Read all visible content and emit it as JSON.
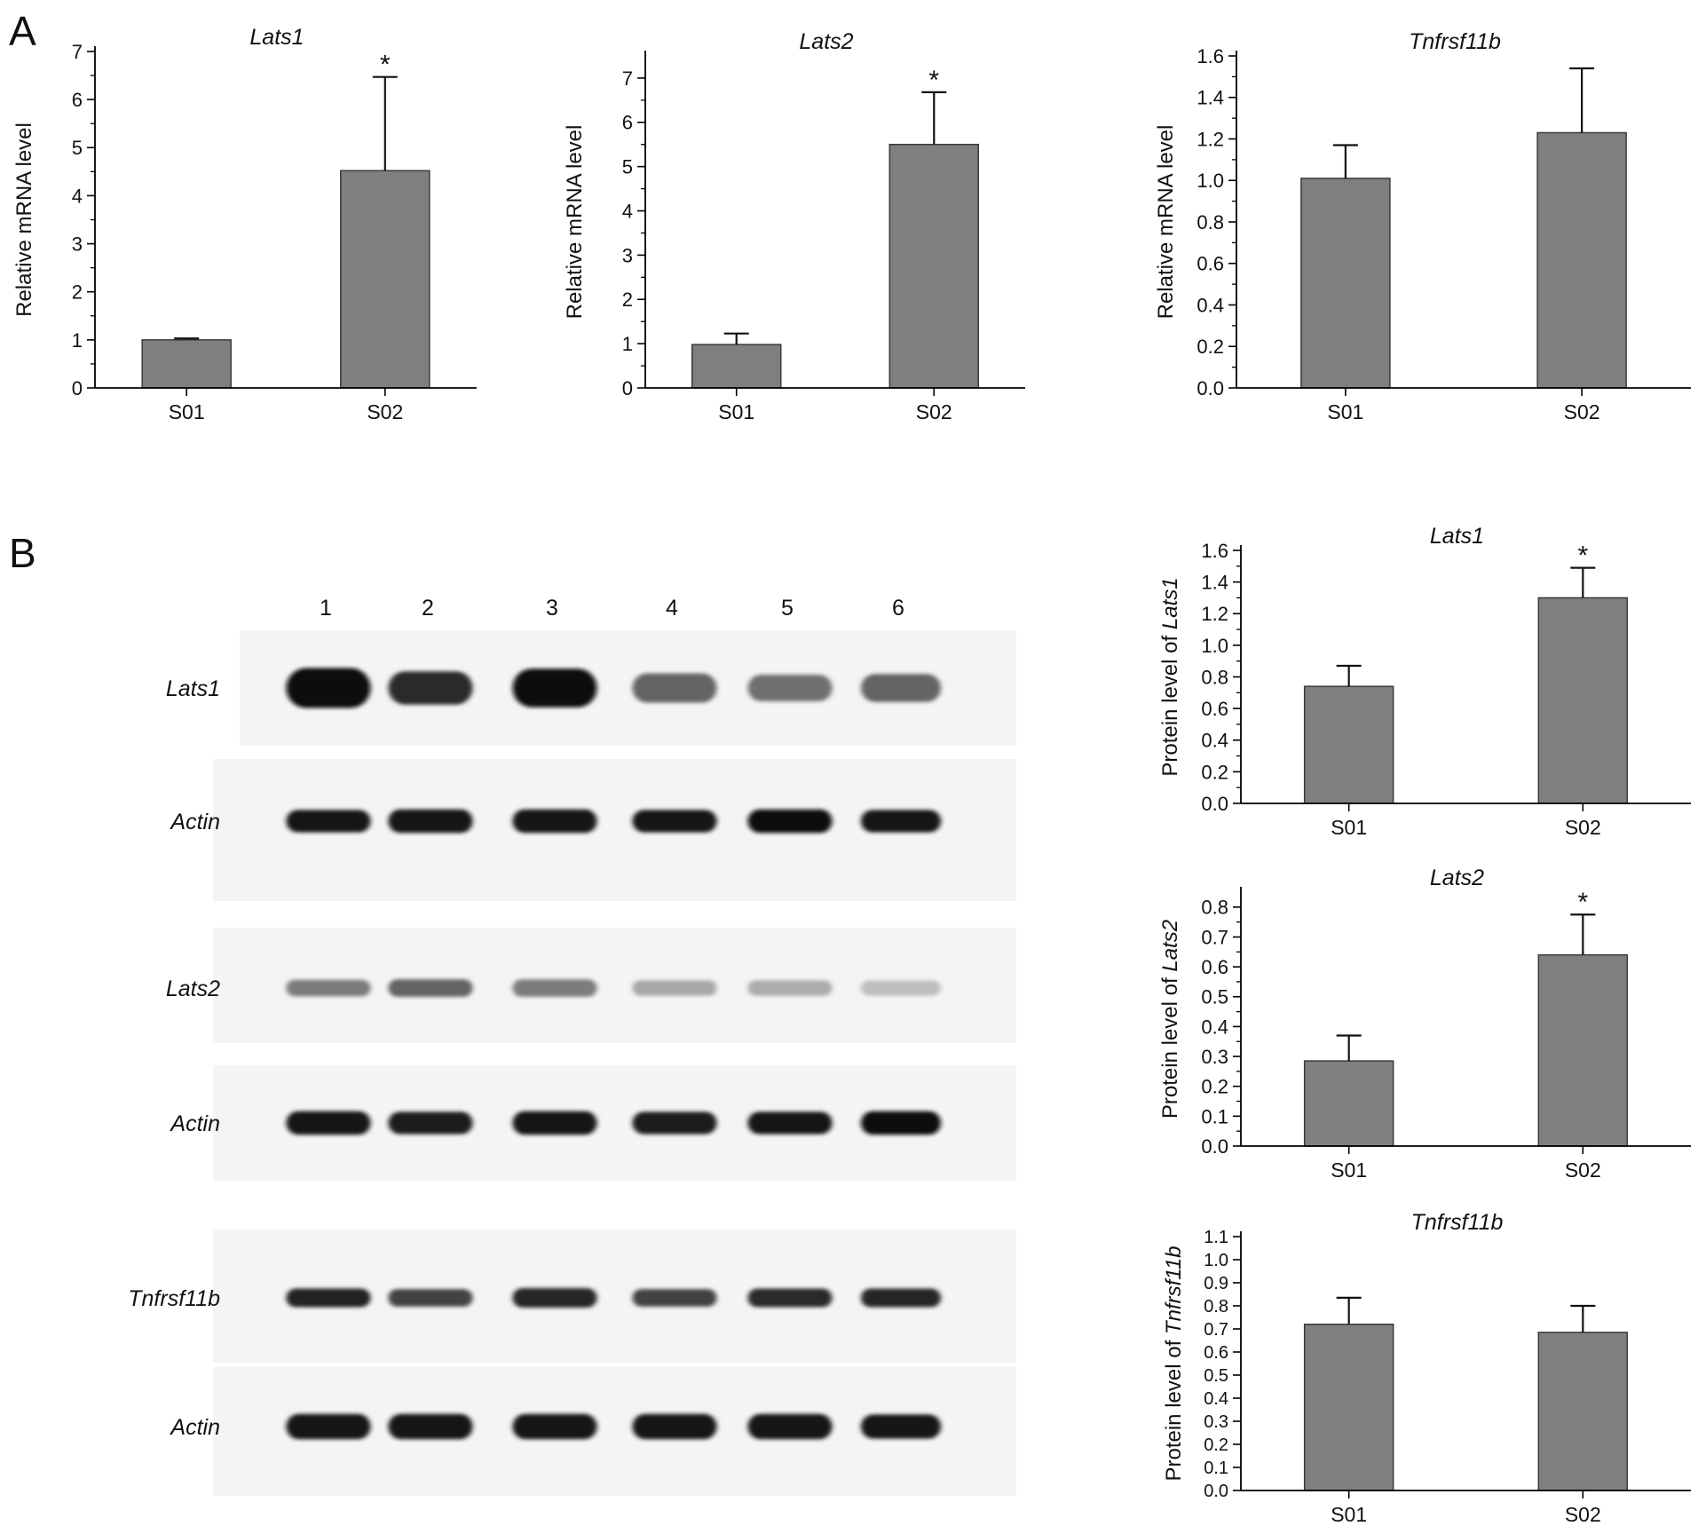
{
  "panels": [
    {
      "letter": "A"
    },
    {
      "letter": "B"
    }
  ],
  "blot": {
    "lanes": [
      "1",
      "2",
      "3",
      "4",
      "5",
      "6"
    ],
    "rows": [
      {
        "label": "Lats1",
        "intensity": [
          1.0,
          0.85,
          1.0,
          0.6,
          0.55,
          0.6
        ],
        "thickness": [
          1.0,
          0.75,
          0.95,
          0.6,
          0.5,
          0.55
        ]
      },
      {
        "label": "Actin",
        "intensity": [
          0.95,
          0.95,
          0.95,
          0.95,
          0.97,
          0.95
        ],
        "thickness": [
          0.55,
          0.6,
          0.6,
          0.55,
          0.6,
          0.55
        ]
      },
      {
        "label": "Lats2",
        "intensity": [
          0.5,
          0.6,
          0.5,
          0.3,
          0.28,
          0.2
        ],
        "thickness": [
          0.35,
          0.4,
          0.4,
          0.3,
          0.3,
          0.28
        ]
      },
      {
        "label": "Actin",
        "intensity": [
          0.95,
          0.92,
          0.95,
          0.93,
          0.95,
          0.97
        ],
        "thickness": [
          0.6,
          0.55,
          0.6,
          0.55,
          0.55,
          0.6
        ]
      },
      {
        "label": "Tnfrsf11b",
        "intensity": [
          0.9,
          0.75,
          0.88,
          0.75,
          0.85,
          0.88
        ],
        "thickness": [
          0.45,
          0.4,
          0.5,
          0.4,
          0.45,
          0.45
        ]
      },
      {
        "label": "Actin",
        "intensity": [
          0.95,
          0.95,
          0.95,
          0.95,
          0.95,
          0.95
        ],
        "thickness": [
          0.6,
          0.6,
          0.6,
          0.6,
          0.6,
          0.55
        ]
      }
    ]
  },
  "chart_data": [
    {
      "id": "A1",
      "type": "bar",
      "title": "Lats1",
      "ylabel": "Relative mRNA level",
      "xlabel": "",
      "categories": [
        "S01",
        "S02"
      ],
      "values": [
        1.0,
        4.52
      ],
      "errors": [
        0.03,
        1.95
      ],
      "significance": [
        "",
        "*"
      ],
      "ylim": [
        0,
        7
      ],
      "yticks": [
        "0",
        "1",
        "2",
        "3",
        "4",
        "5",
        "6",
        "7"
      ]
    },
    {
      "id": "A2",
      "type": "bar",
      "title": "Lats2",
      "ylabel": "Relative mRNA level",
      "xlabel": "",
      "categories": [
        "S01",
        "S02"
      ],
      "values": [
        0.98,
        5.5
      ],
      "errors": [
        0.25,
        1.18
      ],
      "significance": [
        "",
        "*"
      ],
      "ylim": [
        0,
        7.5
      ],
      "yticks": [
        "0",
        "1",
        "2",
        "3",
        "4",
        "5",
        "6",
        "7"
      ]
    },
    {
      "id": "A3",
      "type": "bar",
      "title": "Tnfrsf11b",
      "ylabel": "Relative mRNA level",
      "xlabel": "",
      "categories": [
        "S01",
        "S02"
      ],
      "values": [
        1.01,
        1.23
      ],
      "errors": [
        0.16,
        0.31
      ],
      "significance": [
        "",
        ""
      ],
      "ylim": [
        0,
        1.6
      ],
      "yticks": [
        "0.0",
        "0.2",
        "0.4",
        "0.6",
        "0.8",
        "1.0",
        "1.2",
        "1.4",
        "1.6"
      ]
    },
    {
      "id": "B1",
      "type": "bar",
      "title": "Lats1",
      "ylabel_prefix": "Protein level of ",
      "ylabel_gene": "Lats1",
      "xlabel": "",
      "categories": [
        "S01",
        "S02"
      ],
      "values": [
        0.74,
        1.3
      ],
      "errors": [
        0.13,
        0.19
      ],
      "significance": [
        "",
        "*"
      ],
      "ylim": [
        0,
        1.6
      ],
      "yticks": [
        "0.0",
        "0.2",
        "0.4",
        "0.6",
        "0.8",
        "1.0",
        "1.2",
        "1.4",
        "1.6"
      ]
    },
    {
      "id": "B2",
      "type": "bar",
      "title": "Lats2",
      "ylabel_prefix": "Protein level of ",
      "ylabel_gene": "Lats2",
      "xlabel": "",
      "categories": [
        "S01",
        "S02"
      ],
      "values": [
        0.285,
        0.64
      ],
      "errors": [
        0.085,
        0.135
      ],
      "significance": [
        "",
        "*"
      ],
      "ylim": [
        0,
        0.85
      ],
      "yticks": [
        "0.0",
        "0.1",
        "0.2",
        "0.3",
        "0.4",
        "0.5",
        "0.6",
        "0.7",
        "0.8"
      ]
    },
    {
      "id": "B3",
      "type": "bar",
      "title": "Tnfrsf11b",
      "ylabel_prefix": "Protein level of ",
      "ylabel_gene": "Tnfrsf11b",
      "xlabel": "",
      "categories": [
        "S01",
        "S02"
      ],
      "values": [
        0.72,
        0.685
      ],
      "errors": [
        0.115,
        0.115
      ],
      "significance": [
        "",
        ""
      ],
      "ylim": [
        0,
        1.1
      ],
      "yticks": [
        "0.0",
        "0.1",
        "0.2",
        "0.3",
        "0.4",
        "0.5",
        "0.6",
        "0.7",
        "0.8",
        "0.9",
        "1.0",
        "1.1"
      ]
    }
  ],
  "colors": {
    "bar_fill": "#7f7f7f",
    "bar_stroke": "#3a3a3a",
    "axis": "#000000"
  }
}
